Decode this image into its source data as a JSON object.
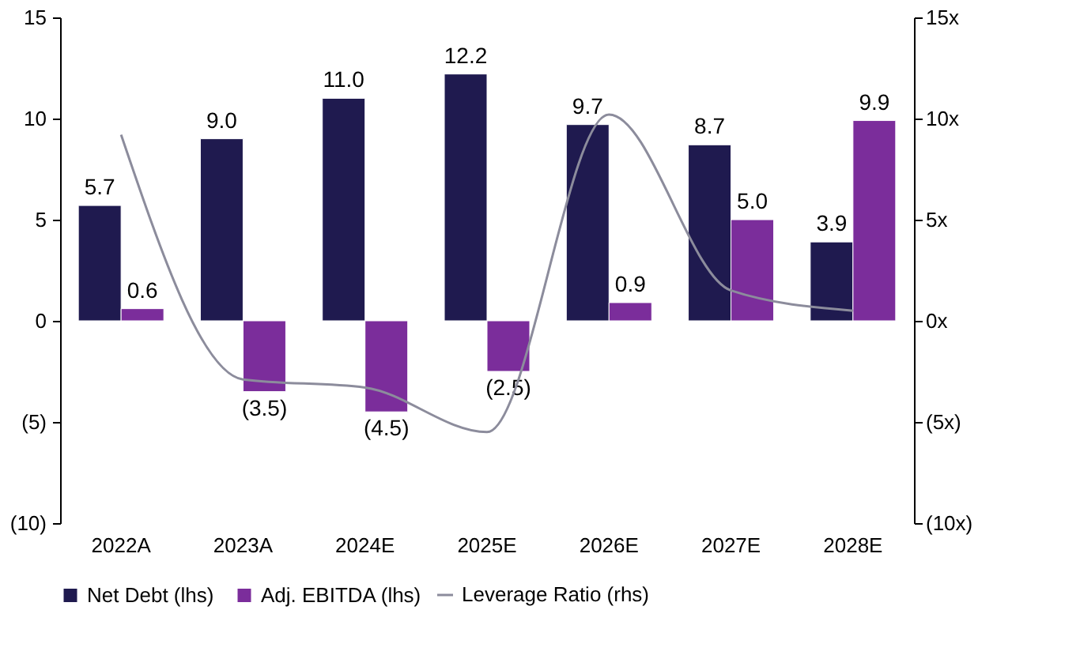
{
  "chart_data": {
    "type": "bar",
    "categories": [
      "2022A",
      "2023A",
      "2024E",
      "2025E",
      "2026E",
      "2027E",
      "2028E"
    ],
    "series": [
      {
        "name": "Net Debt (lhs)",
        "color": "#1f1a4f",
        "values": [
          5.7,
          9.0,
          11.0,
          12.2,
          9.7,
          8.7,
          3.9
        ],
        "value_labels": [
          "5.7",
          "9.0",
          "11.0",
          "12.2",
          "9.7",
          "8.7",
          "3.9"
        ]
      },
      {
        "name": "Adj. EBITDA (lhs)",
        "color": "#7b2d9b",
        "values": [
          0.6,
          -3.5,
          -4.5,
          -2.5,
          0.9,
          5.0,
          9.9
        ],
        "value_labels": [
          "0.6",
          "(3.5)",
          "(4.5)",
          "(2.5)",
          "0.9",
          "5.0",
          "9.9"
        ]
      },
      {
        "name": "Leverage Ratio (rhs)",
        "type": "line",
        "axis": "y2",
        "color": "#8c8c9c",
        "values": [
          9.2,
          -2.9,
          -3.3,
          -5.5,
          10.2,
          1.5,
          0.5
        ]
      }
    ],
    "ylim": [
      -10,
      15
    ],
    "yticks": [
      {
        "value": -10,
        "label": "(10)"
      },
      {
        "value": -5,
        "label": "(5)"
      },
      0,
      5,
      10,
      15
    ],
    "y2lim": [
      -10,
      15
    ],
    "y2ticks": [
      {
        "value": -10,
        "label": "(10x)"
      },
      {
        "value": -5,
        "label": "(5x)"
      },
      {
        "value": 0,
        "label": "0x"
      },
      {
        "value": 5,
        "label": "5x"
      },
      {
        "value": 10,
        "label": "10x"
      },
      {
        "value": 15,
        "label": "15x"
      }
    ],
    "legend": "bottom",
    "grid": false
  }
}
